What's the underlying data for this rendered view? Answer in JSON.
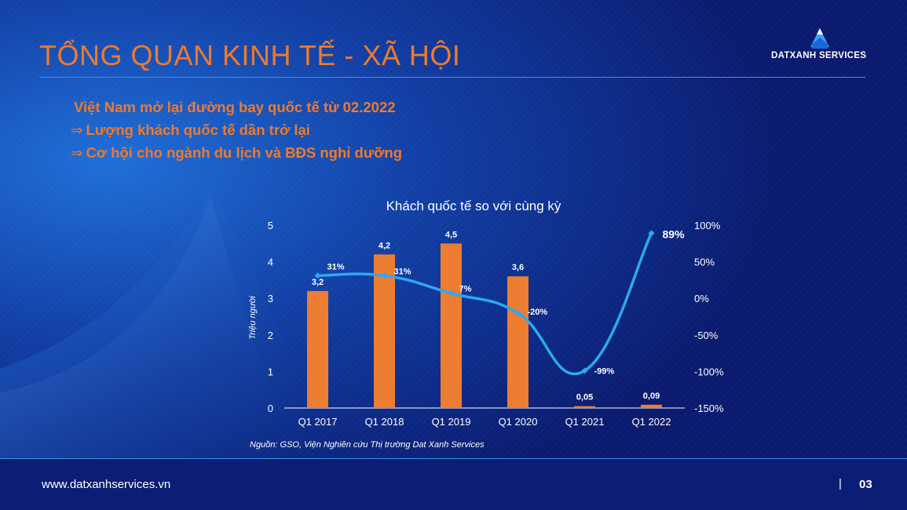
{
  "header": {
    "title": "TỔNG QUAN KINH TẾ - XÃ HỘI",
    "logo_text": "DATXANH SERVICES"
  },
  "bullets": [
    {
      "arrow": "",
      "text": "Việt Nam mở lại đường bay quốc tế từ 02.2022"
    },
    {
      "arrow": "⇒",
      "text": "Lượng khách quốc tế dần trở lại"
    },
    {
      "arrow": "⇒",
      "text": "Cơ hội cho ngành du lịch và BĐS nghỉ dưỡng"
    }
  ],
  "footer": {
    "website": "www.datxanhservices.vn",
    "separator": "|",
    "page": "03"
  },
  "colors": {
    "accent": "#ee7a2c",
    "bar": "#ed7d31",
    "line": "#2ea8f0",
    "background": "#0a1a6e"
  },
  "chart_data": {
    "type": "bar",
    "title": "Khách quốc tế so với cùng kỳ",
    "ylabel": "Triệu người",
    "source": "Nguồn: GSO, Viện Nghiên cứu Thị trường Dat Xanh Services",
    "categories": [
      "Q1 2017",
      "Q1 2018",
      "Q1 2019",
      "Q1 2020",
      "Q1 2021",
      "Q1 2022"
    ],
    "bar_labels": [
      "3,2",
      "4,2",
      "4,5",
      "3,6",
      "0,05",
      "0,09"
    ],
    "values": [
      3.2,
      4.2,
      4.5,
      3.6,
      0.05,
      0.09
    ],
    "ylim": [
      0,
      5
    ],
    "yticks": [
      "0",
      "1",
      "2",
      "3",
      "4",
      "5"
    ],
    "secondary": {
      "type": "line",
      "values": [
        31,
        31,
        7,
        -20,
        -99,
        89
      ],
      "labels": [
        "31%",
        "31%",
        "7%",
        "-20%",
        "-99%",
        "89%"
      ],
      "ylim": [
        -150,
        100
      ],
      "yticks": [
        "-150%",
        "-100%",
        "-50%",
        "0%",
        "50%",
        "100%"
      ]
    },
    "legend": "none",
    "grid": false
  }
}
